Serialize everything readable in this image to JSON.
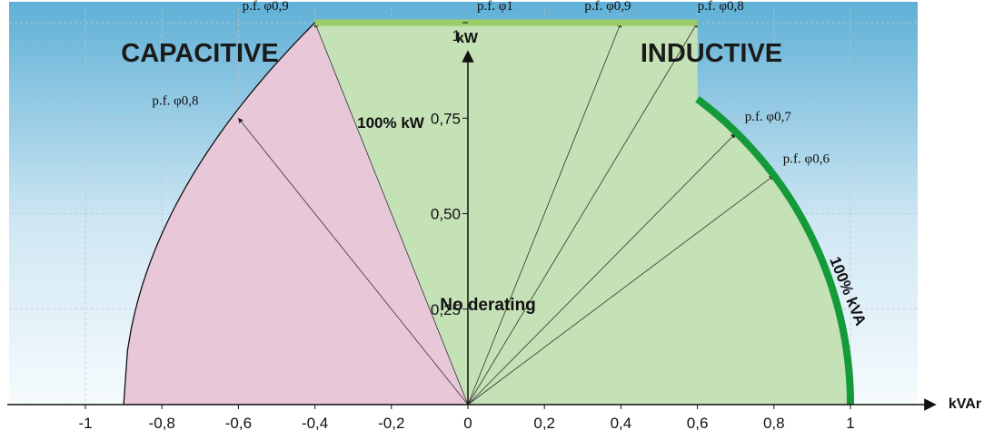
{
  "chart_data": {
    "type": "area",
    "xlabel": "kVAr",
    "ylabel": "kW",
    "xlim": [
      -1,
      1
    ],
    "ylim": [
      0,
      1
    ],
    "x_ticks": [
      -1,
      -0.8,
      -0.6,
      -0.4,
      -0.2,
      0,
      0.2,
      0.4,
      0.6,
      0.8,
      1
    ],
    "x_tick_labels": [
      "-1",
      "-0,8",
      "-0,6",
      "-0,4",
      "-0,2",
      "0",
      "0,2",
      "0,4",
      "0,6",
      "0,8",
      "1"
    ],
    "y_ticks": [
      0.25,
      0.5,
      0.75,
      1
    ],
    "y_tick_labels": [
      "0,25",
      "0,50",
      "0,75",
      "1"
    ],
    "grid": true,
    "regions": {
      "capacitive_label": "CAPACITIVE",
      "inductive_label": "INDUCTIVE"
    },
    "limits": {
      "kw_limit": 1,
      "kw_limit_label": "100% kW",
      "kw_limit_from": -0.4,
      "kw_limit_to": 0.6,
      "kva_limit_label": "100% kVA",
      "capacitive_boundary_start": -0.9,
      "no_derating_label": "No derating"
    },
    "power_factor_lines": [
      {
        "label": "p.f. φ1",
        "kvar": 0,
        "kw": 1
      },
      {
        "label": "p.f. φ0,9",
        "kvar": 0.4,
        "kw": 1
      },
      {
        "label": "p.f. φ0,8",
        "kvar": 0.6,
        "kw": 1
      },
      {
        "label": "p.f. φ0,7",
        "kvar": 0.7,
        "kw": 0.71
      },
      {
        "label": "p.f. φ0,6",
        "kvar": 0.8,
        "kw": 0.6
      },
      {
        "label": "p.f. φ0,9",
        "kvar": -0.4,
        "kw": 1
      },
      {
        "label": "p.f. φ0,8",
        "kvar": -0.6,
        "kw": 0.75
      }
    ],
    "colors": {
      "sky_top": "#5fb0d6",
      "sky_bottom": "#f4fafd",
      "no_derating_fill": "#c5e1b6",
      "capacitive_fill": "#e8c8d8",
      "kw_limit_bar": "#9ccc65",
      "kva_limit_arc": "#159a3a"
    }
  }
}
